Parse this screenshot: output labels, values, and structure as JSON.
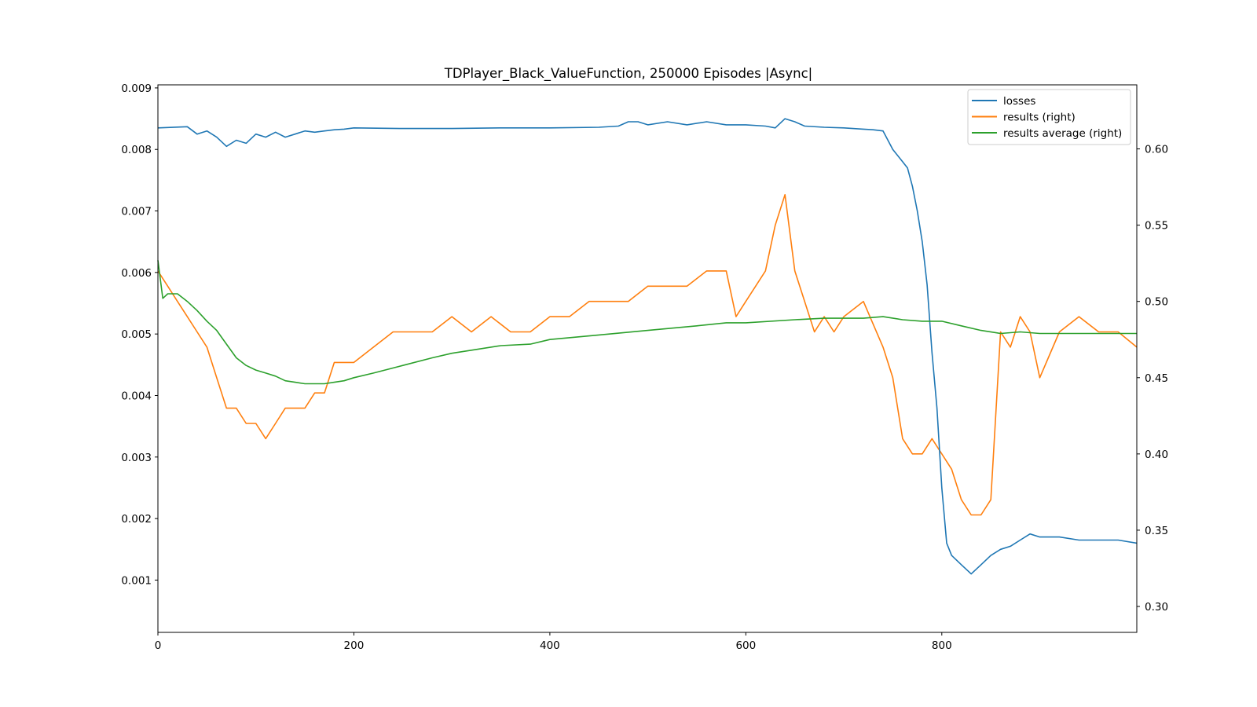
{
  "chart_data": {
    "type": "line",
    "title": "TDPlayer_Black_ValueFunction, 250000 Episodes |Async|",
    "xlabel": "",
    "ylabel": "",
    "xlim": [
      0,
      999
    ],
    "ylim_left": [
      0.00015,
      0.00905
    ],
    "ylim_right": [
      0.283,
      0.642
    ],
    "x_ticks": [
      0,
      200,
      400,
      600,
      800
    ],
    "y_ticks_left": [
      0.001,
      0.002,
      0.003,
      0.004,
      0.005,
      0.006,
      0.007,
      0.008,
      0.009
    ],
    "y_ticks_left_labels": [
      "0.001",
      "0.002",
      "0.003",
      "0.004",
      "0.005",
      "0.006",
      "0.007",
      "0.008",
      "0.009"
    ],
    "y_ticks_right": [
      0.3,
      0.35,
      0.4,
      0.45,
      0.5,
      0.55,
      0.6
    ],
    "y_ticks_right_labels": [
      "0.30",
      "0.35",
      "0.40",
      "0.45",
      "0.50",
      "0.55",
      "0.60"
    ],
    "grid": false,
    "legend_position": "top-right",
    "series": [
      {
        "name": "losses",
        "axis": "left",
        "color": "#1f77b4",
        "x": [
          0,
          30,
          40,
          50,
          60,
          70,
          80,
          90,
          100,
          110,
          120,
          130,
          140,
          150,
          160,
          170,
          180,
          190,
          200,
          250,
          300,
          350,
          400,
          450,
          470,
          480,
          490,
          500,
          520,
          540,
          560,
          580,
          600,
          620,
          630,
          640,
          650,
          660,
          680,
          700,
          720,
          730,
          740,
          750,
          760,
          765,
          770,
          775,
          780,
          785,
          790,
          795,
          800,
          805,
          810,
          820,
          830,
          840,
          850,
          860,
          870,
          880,
          890,
          900,
          920,
          940,
          960,
          980,
          999
        ],
        "values": [
          0.00835,
          0.00837,
          0.00825,
          0.0083,
          0.0082,
          0.00805,
          0.00815,
          0.0081,
          0.00825,
          0.0082,
          0.00828,
          0.0082,
          0.00825,
          0.0083,
          0.00828,
          0.0083,
          0.00832,
          0.00833,
          0.00835,
          0.00834,
          0.00834,
          0.00835,
          0.00835,
          0.00836,
          0.00838,
          0.00845,
          0.00845,
          0.0084,
          0.00845,
          0.0084,
          0.00845,
          0.0084,
          0.0084,
          0.00838,
          0.00835,
          0.0085,
          0.00845,
          0.00838,
          0.00836,
          0.00835,
          0.00833,
          0.00832,
          0.0083,
          0.008,
          0.0078,
          0.0077,
          0.0074,
          0.007,
          0.0065,
          0.0058,
          0.0047,
          0.0038,
          0.0025,
          0.0016,
          0.0014,
          0.00125,
          0.0011,
          0.00125,
          0.0014,
          0.0015,
          0.00155,
          0.00165,
          0.00175,
          0.0017,
          0.0017,
          0.00165,
          0.00165,
          0.00165,
          0.0016
        ]
      },
      {
        "name": "results (right)",
        "axis": "right",
        "color": "#ff7f0e",
        "x": [
          0,
          10,
          20,
          30,
          40,
          50,
          60,
          70,
          80,
          90,
          100,
          110,
          120,
          130,
          140,
          150,
          160,
          170,
          180,
          200,
          220,
          240,
          260,
          280,
          300,
          320,
          340,
          360,
          380,
          400,
          420,
          440,
          460,
          480,
          500,
          520,
          540,
          560,
          580,
          590,
          600,
          610,
          620,
          630,
          640,
          650,
          660,
          670,
          680,
          690,
          700,
          720,
          740,
          750,
          760,
          770,
          780,
          790,
          800,
          810,
          820,
          830,
          840,
          850,
          860,
          870,
          880,
          890,
          900,
          920,
          940,
          960,
          980,
          999
        ],
        "values": [
          0.52,
          0.51,
          0.5,
          0.49,
          0.48,
          0.47,
          0.45,
          0.43,
          0.43,
          0.42,
          0.42,
          0.41,
          0.42,
          0.43,
          0.43,
          0.43,
          0.44,
          0.44,
          0.46,
          0.46,
          0.47,
          0.48,
          0.48,
          0.48,
          0.49,
          0.48,
          0.49,
          0.48,
          0.48,
          0.49,
          0.49,
          0.5,
          0.5,
          0.5,
          0.51,
          0.51,
          0.51,
          0.52,
          0.52,
          0.49,
          0.5,
          0.51,
          0.52,
          0.55,
          0.57,
          0.52,
          0.5,
          0.48,
          0.49,
          0.48,
          0.49,
          0.5,
          0.47,
          0.45,
          0.41,
          0.4,
          0.4,
          0.41,
          0.4,
          0.39,
          0.37,
          0.36,
          0.36,
          0.37,
          0.48,
          0.47,
          0.49,
          0.48,
          0.45,
          0.48,
          0.49,
          0.48,
          0.48,
          0.47
        ]
      },
      {
        "name": "results average (right)",
        "axis": "right",
        "color": "#2ca02c",
        "x": [
          0,
          5,
          10,
          20,
          30,
          40,
          50,
          60,
          70,
          80,
          90,
          100,
          110,
          120,
          130,
          140,
          150,
          160,
          170,
          180,
          190,
          200,
          220,
          250,
          280,
          300,
          320,
          350,
          380,
          400,
          450,
          500,
          550,
          580,
          600,
          650,
          680,
          700,
          720,
          740,
          760,
          780,
          800,
          820,
          840,
          860,
          880,
          900,
          920,
          940,
          960,
          980,
          999
        ],
        "values": [
          0.527,
          0.502,
          0.505,
          0.505,
          0.5,
          0.494,
          0.487,
          0.481,
          0.472,
          0.463,
          0.458,
          0.455,
          0.453,
          0.451,
          0.448,
          0.447,
          0.446,
          0.446,
          0.446,
          0.447,
          0.448,
          0.45,
          0.453,
          0.458,
          0.463,
          0.466,
          0.468,
          0.471,
          0.472,
          0.475,
          0.478,
          0.481,
          0.484,
          0.486,
          0.486,
          0.488,
          0.489,
          0.489,
          0.489,
          0.49,
          0.488,
          0.487,
          0.487,
          0.484,
          0.481,
          0.479,
          0.48,
          0.479,
          0.479,
          0.479,
          0.479,
          0.479,
          0.479
        ]
      }
    ]
  }
}
